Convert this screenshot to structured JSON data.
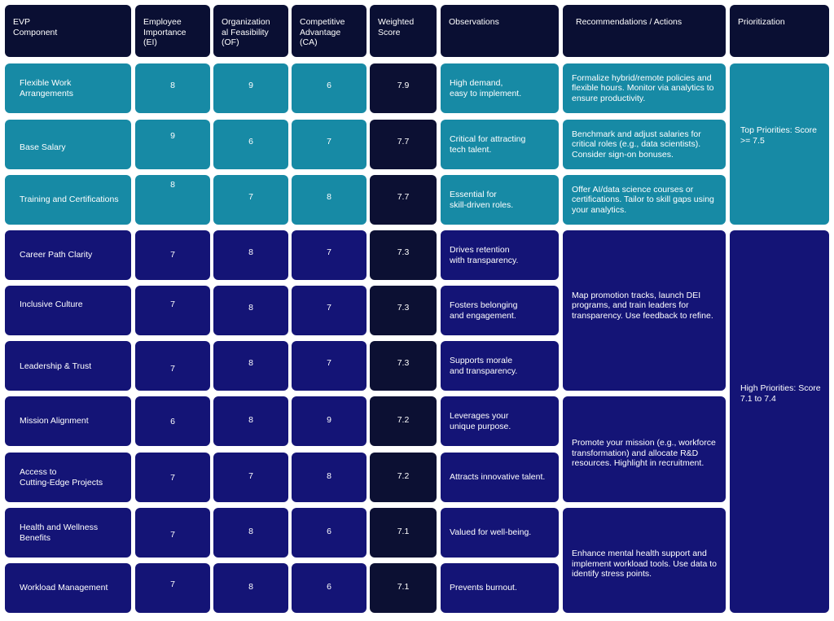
{
  "headers": {
    "component": "EVP\nComponent",
    "ei": "Employee\nImportance\n(EI)",
    "of": "Organization\nal Feasibility\n(OF)",
    "ca": "Competitive\nAdvantage\n(CA)",
    "score": "Weighted\nScore",
    "observations": "Observations",
    "recommendations": "Recommendations / Actions",
    "prioritization": "Prioritization"
  },
  "rows": [
    {
      "component": "Flexible Work\nArrangements",
      "ei": "8",
      "of": "9",
      "ca": "6",
      "score": "7.9",
      "observation": "High demand,\neasy to implement.",
      "tier": "top"
    },
    {
      "component": "Base Salary",
      "ei": "9",
      "of": "6",
      "ca": "7",
      "score": "7.7",
      "observation": "Critical for attracting\ntech talent.",
      "tier": "top"
    },
    {
      "component": "Training and Certifications",
      "ei": "8",
      "of": "7",
      "ca": "8",
      "score": "7.7",
      "observation": "Essential for\nskill-driven roles.",
      "tier": "top"
    },
    {
      "component": "Career Path Clarity",
      "ei": "7",
      "of": "8",
      "ca": "7",
      "score": "7.3",
      "observation": "Drives retention\nwith transparency.",
      "tier": "high"
    },
    {
      "component": "Inclusive Culture",
      "ei": "7",
      "of": "8",
      "ca": "7",
      "score": "7.3",
      "observation": "Fosters belonging\nand engagement.",
      "tier": "high"
    },
    {
      "component": "Leadership & Trust",
      "ei": "7",
      "of": "8",
      "ca": "7",
      "score": "7.3",
      "observation": "Supports morale\nand transparency.",
      "tier": "high"
    },
    {
      "component": "Mission Alignment",
      "ei": "6",
      "of": "8",
      "ca": "9",
      "score": "7.2",
      "observation": "Leverages your\nunique purpose.",
      "tier": "high"
    },
    {
      "component": "Access to\nCutting-Edge Projects",
      "ei": "7",
      "of": "7",
      "ca": "8",
      "score": "7.2",
      "observation": "Attracts innovative talent.",
      "tier": "high"
    },
    {
      "component": "Health and Wellness\nBenefits",
      "ei": "7",
      "of": "8",
      "ca": "6",
      "score": "7.1",
      "observation": "Valued for well-being.",
      "tier": "high"
    },
    {
      "component": "Workload Management",
      "ei": "7",
      "of": "8",
      "ca": "6",
      "score": "7.1",
      "observation": "Prevents burnout.",
      "tier": "high"
    }
  ],
  "recommendations": [
    "Formalize hybrid/remote policies and flexible hours. Monitor via analytics to ensure productivity.",
    "Benchmark and adjust salaries for critical roles (e.g., data scientists). Consider sign-on bonuses.",
    "Offer AI/data science courses or certifications. Tailor to skill gaps using your analytics.",
    "Map promotion tracks, launch DEI programs, and train leaders for transparency. Use feedback to refine.",
    "Promote your mission (e.g., workforce transformation) and allocate R&D resources. Highlight in recruitment.",
    "Enhance mental health support and implement workload tools. Use data to identify stress points."
  ],
  "priorities": {
    "top": "Top Priorities: Score >= 7.5",
    "high": "High Priorities: Score 7.1 to 7.4"
  },
  "colors": {
    "header_bg": "#0a0f33",
    "top_tier": "#178aa5",
    "high_tier": "#141476",
    "score_bg": "#0c1033",
    "text": "#ffffff"
  }
}
